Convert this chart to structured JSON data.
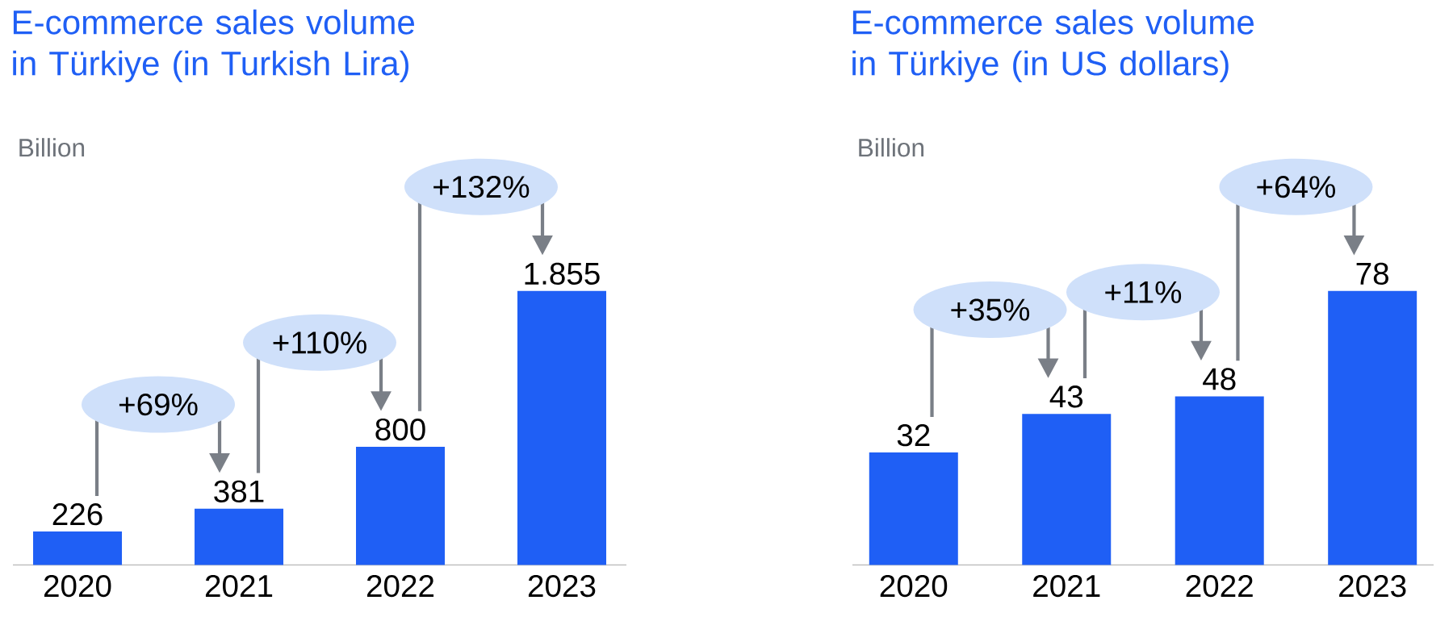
{
  "chart_data": [
    {
      "type": "bar",
      "title": "E-commerce sales volume in Türkiye (in Turkish Lira)",
      "subtitle": "Billion",
      "categories": [
        "2020",
        "2021",
        "2022",
        "2023"
      ],
      "values": [
        226,
        381,
        800,
        1855
      ],
      "value_labels": [
        "226",
        "381",
        "800",
        "1.855"
      ],
      "color": "#1f5ff5",
      "annotations": [
        "+69%",
        "+110%",
        "+132%"
      ]
    },
    {
      "type": "bar",
      "title": "E-commerce sales volume in Türkiye (in US dollars)",
      "subtitle": "Billion",
      "categories": [
        "2020",
        "2021",
        "2022",
        "2023"
      ],
      "values": [
        32,
        43,
        48,
        78
      ],
      "data_labels": true,
      "color": "#1f5ff5",
      "annotations": [
        "+35%",
        "+11%",
        "+64%"
      ]
    }
  ]
}
